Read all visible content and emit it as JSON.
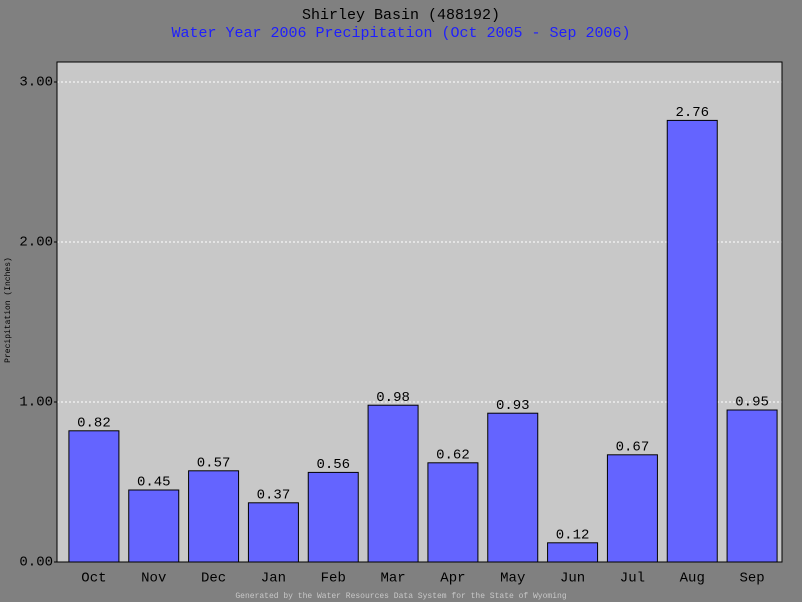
{
  "chart_data": {
    "type": "bar",
    "title": "Shirley Basin (488192)",
    "subtitle": "Water Year 2006 Precipitation (Oct 2005 - Sep 2006)",
    "y_label": "Precipitation (Inches)",
    "footer": "Generated by the Water Resources Data System for the State of Wyoming",
    "categories": [
      "Oct",
      "Nov",
      "Dec",
      "Jan",
      "Feb",
      "Mar",
      "Apr",
      "May",
      "Jun",
      "Jul",
      "Aug",
      "Sep"
    ],
    "values": [
      0.82,
      0.45,
      0.57,
      0.37,
      0.56,
      0.98,
      0.62,
      0.93,
      0.12,
      0.67,
      2.76,
      0.95
    ],
    "color": "#6464ff",
    "ylim": [
      0,
      3.125
    ],
    "yticks": [
      {
        "value": 0,
        "label": "0.00"
      },
      {
        "value": 1,
        "label": "1.00"
      },
      {
        "value": 2,
        "label": "2.00"
      },
      {
        "value": 3,
        "label": "3.00"
      }
    ],
    "grid": true
  }
}
